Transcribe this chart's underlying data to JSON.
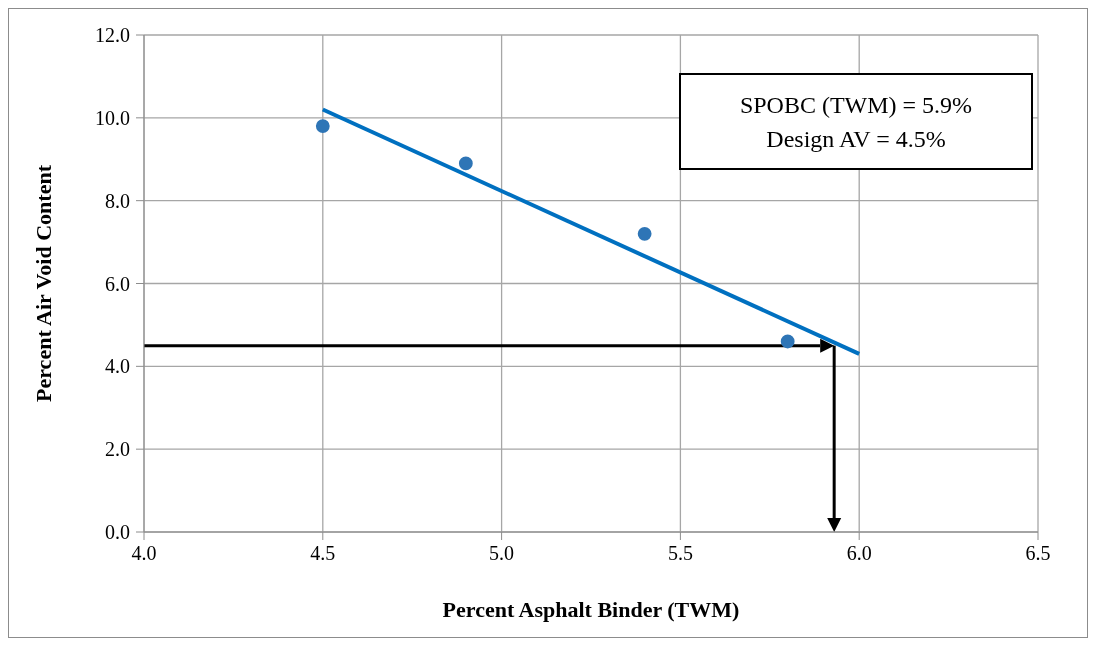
{
  "chart_data": {
    "type": "scatter",
    "xlabel": "Percent Asphalt Binder (TWM)",
    "ylabel": "Percent Air  Void Content",
    "series": [
      {
        "color": "#2e75b6",
        "x": [
          4.5,
          4.9,
          5.4,
          5.8
        ],
        "values": [
          9.8,
          8.9,
          7.2,
          4.6
        ]
      },
      {
        "type": "line",
        "color": "#0070c0",
        "x": [
          4.5,
          6.0
        ],
        "values": [
          10.2,
          4.3
        ],
        "marker": "none"
      }
    ],
    "marker": "circle",
    "xlim": [
      4.0,
      6.5
    ],
    "xticks": [
      {
        "value": 4,
        "label": "4.0"
      },
      4.5,
      {
        "value": 5,
        "label": "5.0"
      },
      5.5,
      {
        "value": 6,
        "label": "6.0"
      },
      6.5
    ],
    "ylim": [
      0,
      12
    ],
    "yticks": [
      {
        "value": 0,
        "label": "0.0"
      },
      {
        "value": 2,
        "label": "2.0"
      },
      {
        "value": 4,
        "label": "4.0"
      },
      {
        "value": 6,
        "label": "6.0"
      },
      {
        "value": 8,
        "label": "8.0"
      },
      {
        "value": 10,
        "label": "10.0"
      },
      {
        "value": 12,
        "label": "12.0"
      }
    ],
    "grid": true,
    "ref_lines": [
      {
        "axis": "y",
        "value": 4.5,
        "color": "#000000"
      },
      {
        "axis": "x",
        "value": 5.93,
        "color": "#000000"
      }
    ],
    "annotations": [
      "SPOBC (TWM) = 5.9%",
      "Design AV = 4.5%"
    ]
  }
}
